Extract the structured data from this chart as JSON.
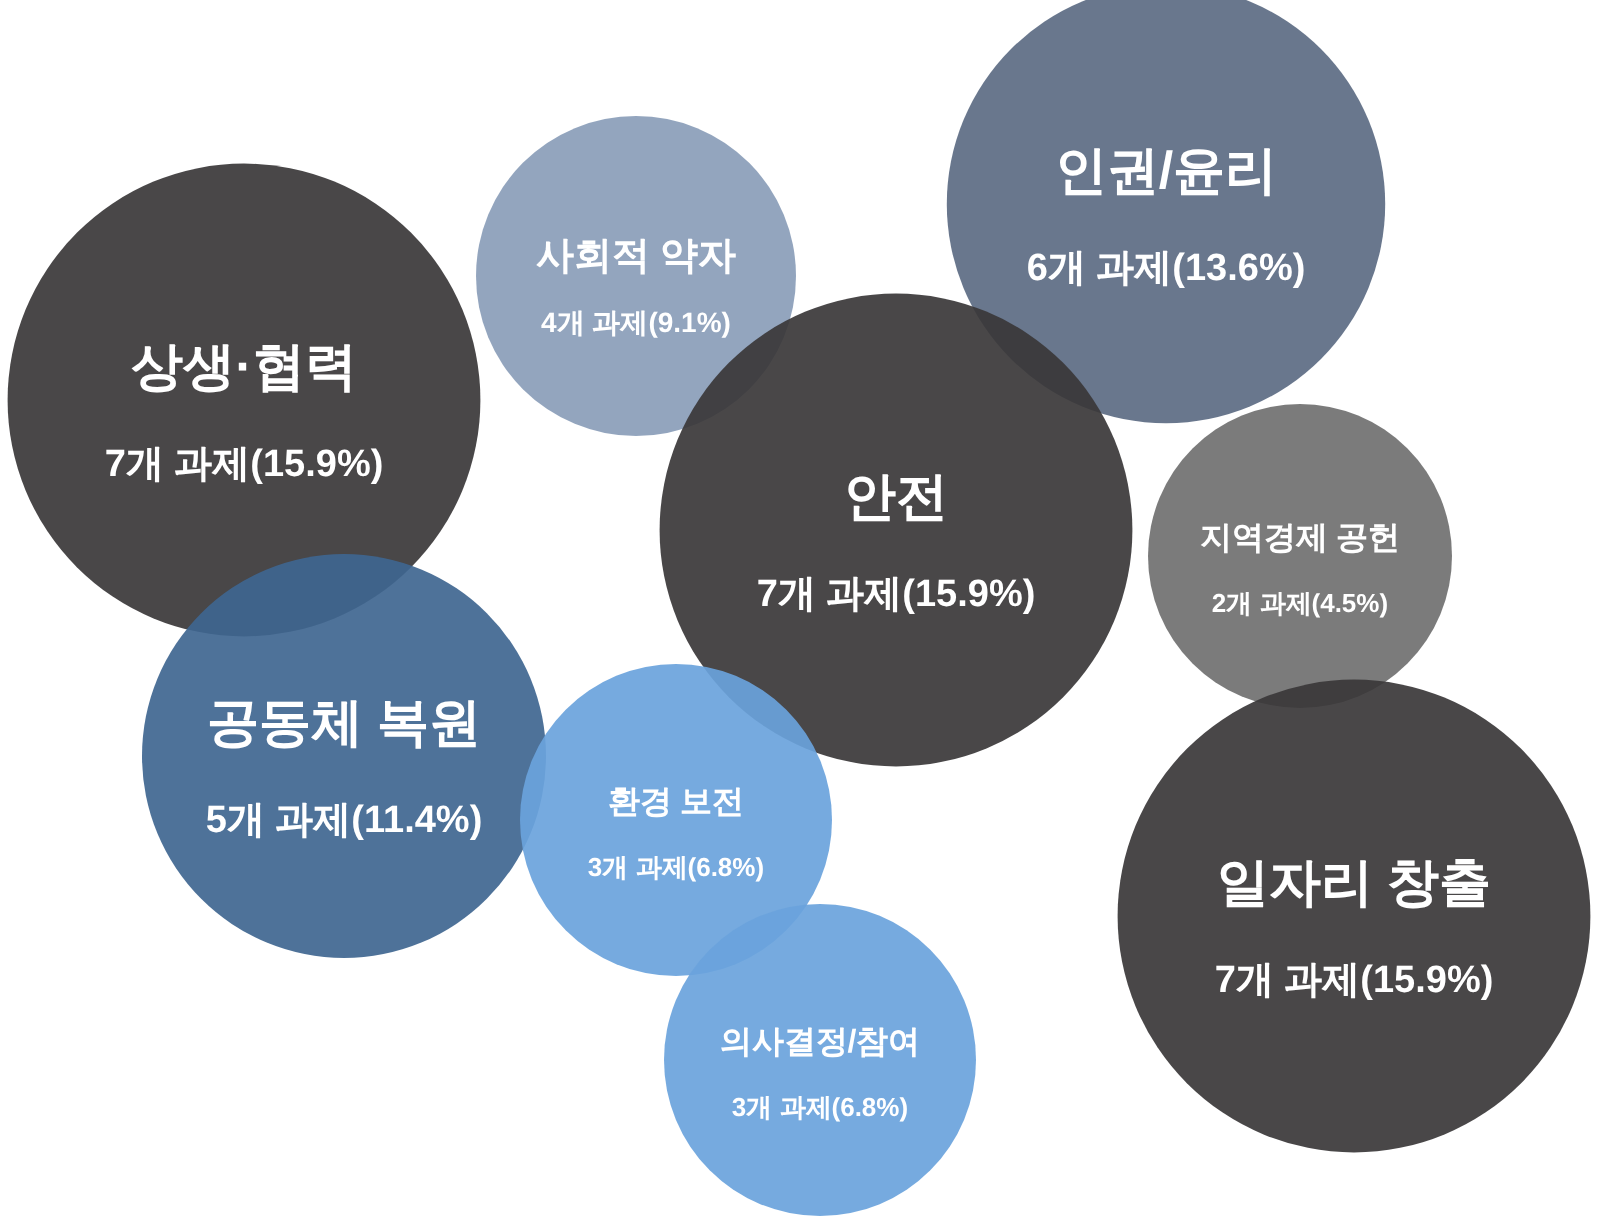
{
  "chart_data": {
    "type": "other",
    "categories": [
      "상생·협력",
      "사회적 약자",
      "인권/윤리",
      "안전",
      "지역경제 공헌",
      "공동체 복원",
      "환경 보전",
      "일자리 창출",
      "의사결정/참여"
    ],
    "values": [
      7,
      4,
      6,
      7,
      2,
      5,
      3,
      7,
      3
    ],
    "value_labels": [
      "7개 과제(15.9%)",
      "4개 과제(9.1%)",
      "6개 과제(13.6%)",
      "7개 과제(15.9%)",
      "2개 과제(4.5%)",
      "5개 과제(11.4%)",
      "3개 과제(6.8%)",
      "7개 과제(15.9%)",
      "3개 과제(6.8%)"
    ],
    "colors": [
      "#3a3738",
      "#8a9db8",
      "#5c6b83",
      "#3a3738",
      "#707070",
      "#3f6690",
      "#6aa3dc",
      "#3a3738",
      "#6aa3dc"
    ]
  }
}
